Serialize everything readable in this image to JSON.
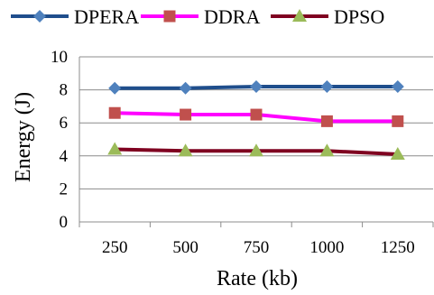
{
  "chart_data": {
    "type": "line",
    "xlabel": "Rate (kb)",
    "ylabel": "Energy (J)",
    "categories": [
      "250",
      "500",
      "750",
      "1000",
      "1250"
    ],
    "ylim": [
      0,
      10
    ],
    "yticks": [
      "0",
      "2",
      "4",
      "6",
      "8",
      "10"
    ],
    "grid": true,
    "legend_position": "top",
    "series": [
      {
        "name": "DPERA",
        "values": [
          8.1,
          8.1,
          8.2,
          8.2,
          8.2
        ],
        "color": "#1F4E8C",
        "marker": "diamond",
        "marker_color": "#4F81BD"
      },
      {
        "name": "DDRA",
        "values": [
          6.6,
          6.5,
          6.5,
          6.1,
          6.1
        ],
        "color": "#FF00FF",
        "marker": "square",
        "marker_color": "#C0504D"
      },
      {
        "name": "DPSO",
        "values": [
          4.4,
          4.3,
          4.3,
          4.3,
          4.1
        ],
        "color": "#7F0020",
        "marker": "triangle",
        "marker_color": "#9BBB59"
      }
    ]
  }
}
